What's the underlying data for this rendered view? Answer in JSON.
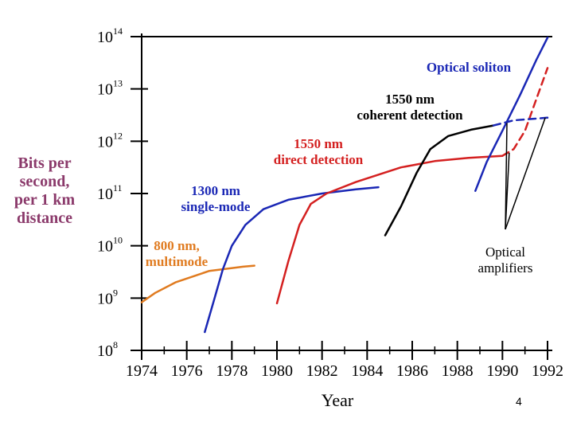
{
  "chart_data": {
    "type": "line",
    "title": "",
    "xlabel": "Year",
    "ylabel_lines": [
      "Bits per",
      "second,",
      "per 1 km",
      "distance"
    ],
    "xlim": [
      1974,
      1992
    ],
    "ylim_log10": [
      8,
      14
    ],
    "x_ticks": [
      "1974",
      "1976",
      "1978",
      "1980",
      "1982",
      "1984",
      "1986",
      "1988",
      "1990",
      "1992"
    ],
    "y_ticks": [
      {
        "exp": 8,
        "base": "10",
        "sup": "8"
      },
      {
        "exp": 9,
        "base": "10",
        "sup": "9"
      },
      {
        "exp": 10,
        "base": "10",
        "sup": "10"
      },
      {
        "exp": 11,
        "base": "10",
        "sup": "11"
      },
      {
        "exp": 12,
        "base": "10",
        "sup": "12"
      },
      {
        "exp": 13,
        "base": "10",
        "sup": "13"
      },
      {
        "exp": 14,
        "base": "10",
        "sup": "14"
      }
    ],
    "series": [
      {
        "name": "800 nm, multimode",
        "label_lines": [
          "800 nm,",
          "multimode"
        ],
        "color": "#e07b20",
        "dashed": false,
        "points": [
          [
            1974.0,
            8.92
          ],
          [
            1974.6,
            9.1
          ],
          [
            1975.5,
            9.3
          ],
          [
            1977.0,
            9.52
          ],
          [
            1978.5,
            9.6
          ],
          [
            1979.0,
            9.62
          ]
        ]
      },
      {
        "name": "1300 nm single-mode",
        "label_lines": [
          "1300 nm",
          "single-mode"
        ],
        "color": "#1a27b5",
        "dashed": false,
        "points": [
          [
            1976.8,
            8.35
          ],
          [
            1977.2,
            8.95
          ],
          [
            1977.6,
            9.55
          ],
          [
            1978.0,
            10.0
          ],
          [
            1978.6,
            10.4
          ],
          [
            1979.4,
            10.7
          ],
          [
            1980.5,
            10.88
          ],
          [
            1982.0,
            11.0
          ],
          [
            1983.5,
            11.08
          ],
          [
            1984.5,
            11.12
          ]
        ]
      },
      {
        "name": "1550 nm direct detection",
        "label_lines": [
          "1550 nm",
          "direct detection"
        ],
        "color": "#d42020",
        "dashed": false,
        "points": [
          [
            1980.0,
            8.9
          ],
          [
            1980.5,
            9.7
          ],
          [
            1981.0,
            10.4
          ],
          [
            1981.5,
            10.8
          ],
          [
            1982.2,
            11.0
          ],
          [
            1983.5,
            11.22
          ],
          [
            1985.5,
            11.5
          ],
          [
            1987.0,
            11.62
          ],
          [
            1988.5,
            11.68
          ],
          [
            1990.0,
            11.72
          ]
        ]
      },
      {
        "name": "1550 nm direct detection (amplified)",
        "color": "#d42020",
        "dashed": true,
        "points": [
          [
            1990.0,
            11.72
          ],
          [
            1990.5,
            11.85
          ],
          [
            1991.0,
            12.2
          ],
          [
            1991.5,
            12.8
          ],
          [
            1992.0,
            13.4
          ]
        ]
      },
      {
        "name": "1550 nm coherent detection",
        "label_lines": [
          "1550 nm",
          "coherent detection"
        ],
        "color": "#000000",
        "dashed": false,
        "points": [
          [
            1984.8,
            10.2
          ],
          [
            1985.5,
            10.75
          ],
          [
            1986.2,
            11.4
          ],
          [
            1986.8,
            11.85
          ],
          [
            1987.6,
            12.1
          ],
          [
            1988.6,
            12.22
          ],
          [
            1989.6,
            12.3
          ]
        ]
      },
      {
        "name": "1550 nm coherent detection (amplified)",
        "color": "#1a27b5",
        "dashed": true,
        "points": [
          [
            1989.6,
            12.3
          ],
          [
            1990.5,
            12.4
          ],
          [
            1992.0,
            12.45
          ]
        ]
      },
      {
        "name": "Optical soliton",
        "label_lines": [
          "Optical soliton"
        ],
        "color": "#1a27b5",
        "dashed": false,
        "points": [
          [
            1988.8,
            11.05
          ],
          [
            1989.3,
            11.6
          ],
          [
            1990.0,
            12.2
          ],
          [
            1990.8,
            12.9
          ],
          [
            1991.5,
            13.55
          ],
          [
            1992.0,
            13.98
          ]
        ]
      }
    ],
    "annotations": {
      "optical_amplifiers": {
        "label_lines": [
          "Optical",
          "amplifiers"
        ],
        "pointer_targets": [
          [
            1990.3,
            11.78
          ],
          [
            1990.2,
            12.35
          ],
          [
            1991.9,
            12.45
          ]
        ]
      }
    }
  },
  "page_number": "4"
}
